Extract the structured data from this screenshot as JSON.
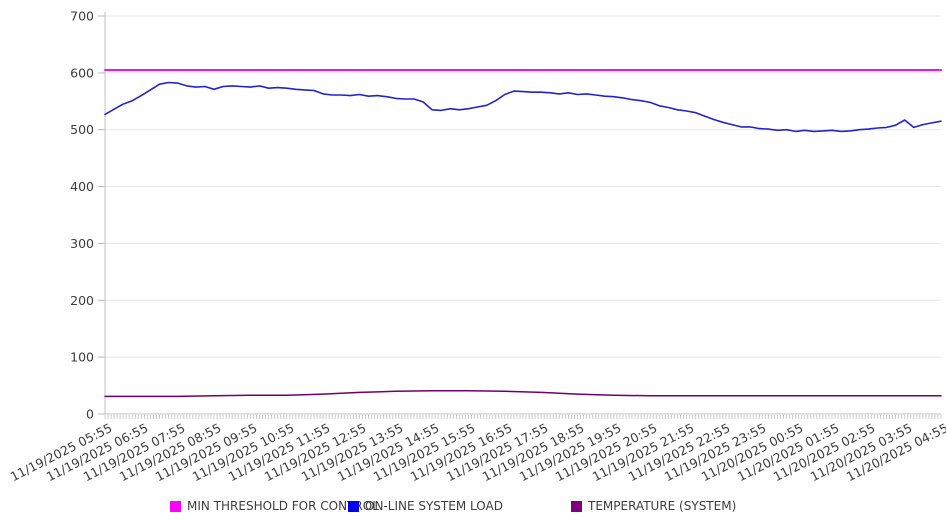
{
  "chart_data": {
    "type": "line",
    "title": "",
    "x_labels": [
      "11/19/2025 05:55",
      "11/19/2025 06:55",
      "11/19/2025 07:55",
      "11/19/2025 08:55",
      "11/19/2025 09:55",
      "11/19/2025 10:55",
      "11/19/2025 11:55",
      "11/19/2025 12:55",
      "11/19/2025 13:55",
      "11/19/2025 14:55",
      "11/19/2025 15:55",
      "11/19/2025 16:55",
      "11/19/2025 17:55",
      "11/19/2025 18:55",
      "11/19/2025 19:55",
      "11/19/2025 20:55",
      "11/19/2025 21:55",
      "11/19/2025 22:55",
      "11/19/2025 23:55",
      "11/20/2025 00:55",
      "11/20/2025 01:55",
      "11/20/2025 02:55",
      "11/20/2025 03:55",
      "11/20/2025 04:55"
    ],
    "x_minor_tick_count": 277,
    "y_axis": {
      "min": 0,
      "max": 700,
      "tick_step": 100,
      "ticks": [
        0,
        100,
        200,
        300,
        400,
        500,
        600,
        700
      ]
    },
    "grid": "horizontal-only",
    "legend_position": "bottom",
    "series": [
      {
        "name": "MIN THRESHOLD FOR CONTROL",
        "color": "#ee14ee",
        "swatch": "#ff00ff",
        "values": [
          605,
          605
        ]
      },
      {
        "name": "ON-LINE SYSTEM LOAD",
        "color": "#2323cd",
        "swatch": "#0000ee",
        "sample_interval_minutes": 15,
        "values": [
          527,
          536,
          545,
          551,
          560,
          570,
          580,
          583,
          582,
          577,
          575,
          576,
          571,
          576,
          577,
          576,
          575,
          577,
          573,
          574,
          573,
          571,
          570,
          569,
          563,
          561,
          561,
          560,
          562,
          559,
          560,
          558,
          555,
          554,
          554,
          549,
          535,
          534,
          537,
          535,
          537,
          540,
          543,
          551,
          562,
          568,
          567,
          566,
          566,
          565,
          563,
          565,
          562,
          563,
          561,
          559,
          558,
          556,
          553,
          551,
          548,
          542,
          539,
          535,
          533,
          530,
          524,
          518,
          513,
          509,
          505,
          505,
          502,
          501,
          499,
          500,
          497,
          499,
          497,
          498,
          499,
          497,
          498,
          500,
          501,
          503,
          504,
          508,
          517,
          504,
          509,
          512,
          515
        ]
      },
      {
        "name": "TEMPERATURE (SYSTEM)",
        "color": "#6e006e",
        "swatch": "#800080",
        "sample_interval_minutes": 60,
        "values": [
          31,
          31,
          31,
          32,
          33,
          33,
          35,
          38,
          40,
          41,
          41,
          40,
          38,
          35,
          33,
          32,
          32,
          32,
          32,
          32,
          32,
          32,
          32,
          32
        ]
      }
    ]
  }
}
